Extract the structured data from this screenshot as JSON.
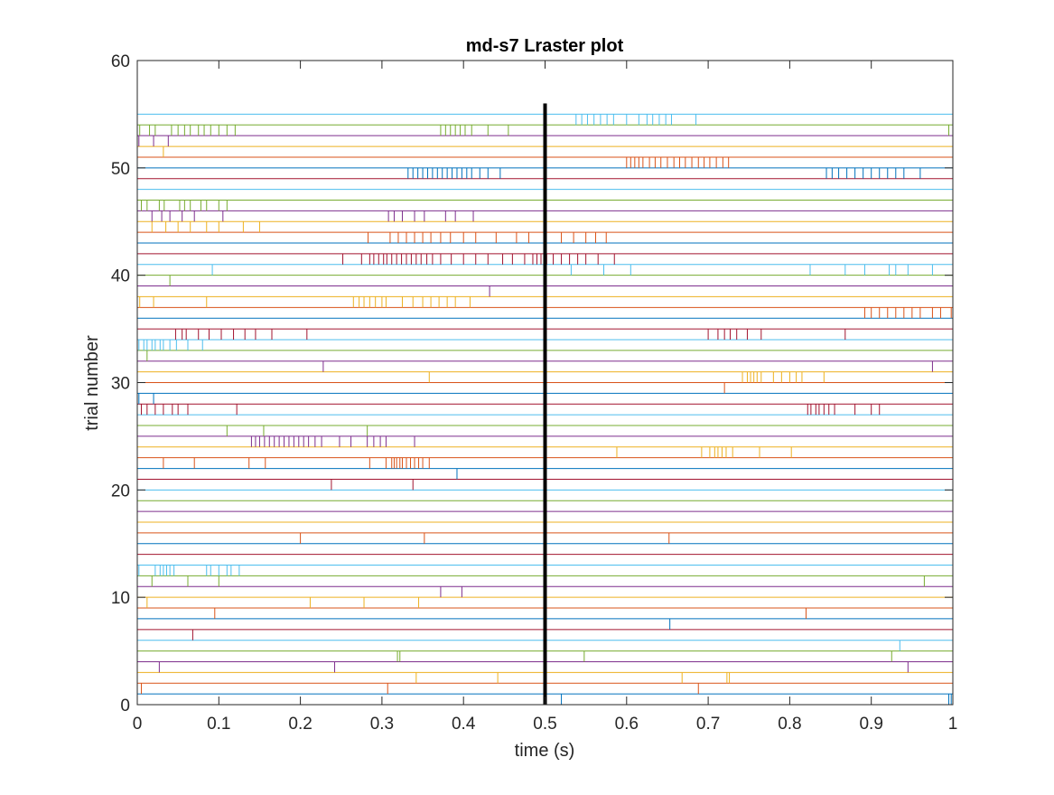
{
  "chart_data": {
    "type": "raster",
    "title": "md-s7 Lraster plot",
    "xlabel": "time (s)",
    "ylabel": "trial number",
    "xlim": [
      0,
      1
    ],
    "ylim": [
      0,
      60
    ],
    "xticks": [
      "0",
      "0.1",
      "0.2",
      "0.3",
      "0.4",
      "0.5",
      "0.6",
      "0.7",
      "0.8",
      "0.9",
      "1"
    ],
    "yticks": [
      "0",
      "10",
      "20",
      "30",
      "40",
      "50",
      "60"
    ],
    "event_line_x": 0.5,
    "event_line_ymax": 56,
    "trial_count": 55,
    "colors": [
      "#0072BD",
      "#D95319",
      "#EDB120",
      "#7E2F8E",
      "#77AC30",
      "#4DBEEE",
      "#A2142F"
    ],
    "spikes": [
      {
        "trial": 1,
        "times": [
          0.52,
          0.995,
          0.998
        ]
      },
      {
        "trial": 2,
        "times": [
          0.005,
          0.307,
          0.688
        ]
      },
      {
        "trial": 3,
        "times": [
          0.342,
          0.442,
          0.668,
          0.723,
          0.726
        ]
      },
      {
        "trial": 4,
        "times": [
          0.027,
          0.242,
          0.945
        ]
      },
      {
        "trial": 5,
        "times": [
          0.319,
          0.322,
          0.548,
          0.925
        ]
      },
      {
        "trial": 6,
        "times": [
          0.935
        ]
      },
      {
        "trial": 7,
        "times": [
          0.068
        ]
      },
      {
        "trial": 8,
        "times": [
          0.653
        ]
      },
      {
        "trial": 9,
        "times": [
          0.095,
          0.82
        ]
      },
      {
        "trial": 10,
        "times": [
          0.012,
          0.212,
          0.278,
          0.345
        ]
      },
      {
        "trial": 11,
        "times": [
          0.372,
          0.398
        ]
      },
      {
        "trial": 12,
        "times": [
          0.018,
          0.062,
          0.1,
          0.965
        ]
      },
      {
        "trial": 13,
        "times": [
          0.002,
          0.022,
          0.028,
          0.032,
          0.036,
          0.04,
          0.045,
          0.085,
          0.09,
          0.1,
          0.11,
          0.115,
          0.125
        ]
      },
      {
        "trial": 16,
        "times": [
          0.2,
          0.352,
          0.652
        ]
      },
      {
        "trial": 21,
        "times": [
          0.238,
          0.338
        ]
      },
      {
        "trial": 22,
        "times": [
          0.392
        ]
      },
      {
        "trial": 23,
        "times": [
          0.032,
          0.07,
          0.137,
          0.157,
          0.285,
          0.305,
          0.312,
          0.315,
          0.318,
          0.322,
          0.325,
          0.33,
          0.335,
          0.34,
          0.345,
          0.35,
          0.358
        ]
      },
      {
        "trial": 24,
        "times": [
          0.588,
          0.692,
          0.702,
          0.708,
          0.712,
          0.717,
          0.722,
          0.73,
          0.763,
          0.802
        ]
      },
      {
        "trial": 25,
        "times": [
          0.14,
          0.145,
          0.15,
          0.156,
          0.162,
          0.168,
          0.174,
          0.18,
          0.186,
          0.192,
          0.198,
          0.204,
          0.21,
          0.218,
          0.226,
          0.248,
          0.262,
          0.282,
          0.29,
          0.298,
          0.305,
          0.34
        ]
      },
      {
        "trial": 26,
        "times": [
          0.11,
          0.155,
          0.282
        ]
      },
      {
        "trial": 28,
        "times": [
          0.005,
          0.012,
          0.022,
          0.032,
          0.043,
          0.05,
          0.062,
          0.122,
          0.822,
          0.826,
          0.832,
          0.836,
          0.842,
          0.848,
          0.855,
          0.88,
          0.9,
          0.91
        ]
      },
      {
        "trial": 29,
        "times": [
          0.002,
          0.02
        ]
      },
      {
        "trial": 30,
        "times": [
          0.72
        ]
      },
      {
        "trial": 31,
        "times": [
          0.358,
          0.742,
          0.748,
          0.752,
          0.756,
          0.76,
          0.765,
          0.78,
          0.79,
          0.8,
          0.808,
          0.815,
          0.842
        ]
      },
      {
        "trial": 32,
        "times": [
          0.228,
          0.975
        ]
      },
      {
        "trial": 33,
        "times": [
          0.012
        ]
      },
      {
        "trial": 34,
        "times": [
          0.002,
          0.008,
          0.012,
          0.018,
          0.022,
          0.028,
          0.032,
          0.04,
          0.048,
          0.062,
          0.08
        ]
      },
      {
        "trial": 35,
        "times": [
          0.047,
          0.055,
          0.06,
          0.075,
          0.088,
          0.103,
          0.118,
          0.132,
          0.145,
          0.165,
          0.208,
          0.7,
          0.712,
          0.72,
          0.727,
          0.735,
          0.748,
          0.765,
          0.868
        ]
      },
      {
        "trial": 37,
        "times": [
          0.892,
          0.9,
          0.91,
          0.92,
          0.93,
          0.94,
          0.95,
          0.96,
          0.975,
          0.985,
          0.998
        ]
      },
      {
        "trial": 38,
        "times": [
          0.003,
          0.02,
          0.085,
          0.265,
          0.272,
          0.278,
          0.285,
          0.292,
          0.3,
          0.305,
          0.325,
          0.338,
          0.35,
          0.36,
          0.37,
          0.38,
          0.39,
          0.408
        ]
      },
      {
        "trial": 39,
        "times": [
          0.432
        ]
      },
      {
        "trial": 40,
        "times": [
          0.04
        ]
      },
      {
        "trial": 41,
        "times": [
          0.092,
          0.532,
          0.572,
          0.605,
          0.825,
          0.868,
          0.892,
          0.922,
          0.93,
          0.945,
          0.975
        ]
      },
      {
        "trial": 42,
        "times": [
          0.252,
          0.275,
          0.285,
          0.29,
          0.296,
          0.302,
          0.306,
          0.312,
          0.318,
          0.324,
          0.33,
          0.336,
          0.342,
          0.348,
          0.355,
          0.362,
          0.372,
          0.385,
          0.4,
          0.415,
          0.43,
          0.448,
          0.46,
          0.475,
          0.485,
          0.49,
          0.495,
          0.502,
          0.51,
          0.52,
          0.53,
          0.54,
          0.55,
          0.565,
          0.585
        ]
      },
      {
        "trial": 44,
        "times": [
          0.283,
          0.31,
          0.32,
          0.33,
          0.34,
          0.35,
          0.36,
          0.372,
          0.384,
          0.4,
          0.415,
          0.44,
          0.465,
          0.48,
          0.52,
          0.535,
          0.55,
          0.562,
          0.575
        ]
      },
      {
        "trial": 45,
        "times": [
          0.018,
          0.035,
          0.05,
          0.065,
          0.085,
          0.1,
          0.13,
          0.15
        ]
      },
      {
        "trial": 46,
        "times": [
          0.018,
          0.03,
          0.04,
          0.055,
          0.07,
          0.105,
          0.308,
          0.315,
          0.325,
          0.34,
          0.352,
          0.378,
          0.39,
          0.412
        ]
      },
      {
        "trial": 47,
        "times": [
          0.005,
          0.012,
          0.027,
          0.033,
          0.052,
          0.058,
          0.065,
          0.078,
          0.085,
          0.1,
          0.11
        ]
      },
      {
        "trial": 50,
        "times": [
          0.332,
          0.338,
          0.344,
          0.35,
          0.356,
          0.362,
          0.368,
          0.374,
          0.38,
          0.386,
          0.392,
          0.398,
          0.404,
          0.41,
          0.42,
          0.43,
          0.445,
          0.845,
          0.852,
          0.86,
          0.87,
          0.88,
          0.89,
          0.9,
          0.91,
          0.92,
          0.93,
          0.94,
          0.96
        ]
      },
      {
        "trial": 51,
        "times": [
          0.6,
          0.605,
          0.61,
          0.615,
          0.62,
          0.628,
          0.635,
          0.642,
          0.65,
          0.658,
          0.665,
          0.672,
          0.68,
          0.688,
          0.695,
          0.702,
          0.71,
          0.718,
          0.725
        ]
      },
      {
        "trial": 52,
        "times": [
          0.032
        ]
      },
      {
        "trial": 53,
        "times": [
          0.002,
          0.02,
          0.038
        ]
      },
      {
        "trial": 54,
        "times": [
          0.003,
          0.015,
          0.022,
          0.042,
          0.05,
          0.058,
          0.065,
          0.075,
          0.082,
          0.09,
          0.1,
          0.11,
          0.12,
          0.372,
          0.378,
          0.384,
          0.39,
          0.396,
          0.402,
          0.41,
          0.43,
          0.455,
          0.995
        ]
      },
      {
        "trial": 55,
        "times": [
          0.538,
          0.545,
          0.552,
          0.56,
          0.568,
          0.576,
          0.584,
          0.6,
          0.615,
          0.625,
          0.632,
          0.64,
          0.648,
          0.655,
          0.685
        ]
      }
    ]
  }
}
